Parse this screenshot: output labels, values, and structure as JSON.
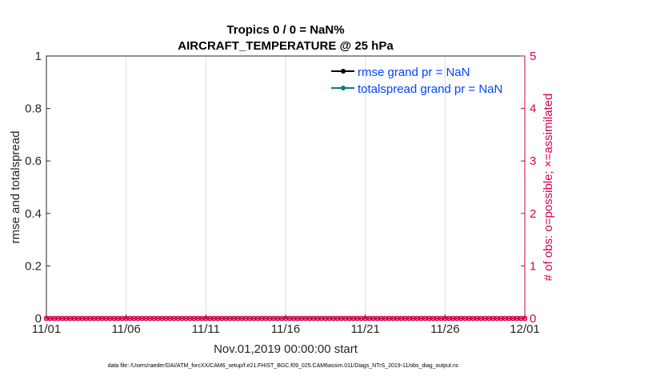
{
  "chart_data": {
    "type": "line",
    "title": [
      "Tropics 0 / 0 = NaN%",
      "AIRCRAFT_TEMPERATURE @ 25 hPa"
    ],
    "xlabel": "Nov.01,2019 00:00:00 start",
    "ylabel_left": "rmse and totalspread",
    "ylabel_right": "# of obs: o=possible; ×=assimilated",
    "x_tick_labels": [
      "11/01",
      "11/06",
      "11/11",
      "11/16",
      "11/21",
      "11/26",
      "12/01"
    ],
    "x_range_days": [
      0,
      30
    ],
    "y_left_ticks": [
      "0",
      "0.2",
      "0.4",
      "0.6",
      "0.8",
      "1"
    ],
    "y_left_range": [
      0,
      1
    ],
    "y_right_ticks": [
      "0",
      "1",
      "2",
      "3",
      "4",
      "5"
    ],
    "y_right_range": [
      0,
      5
    ],
    "grid": "vertical",
    "legend_placement": "top-right",
    "series": [
      {
        "name": "rmse grand pr = NaN",
        "color": "#000000",
        "values": []
      },
      {
        "name": "totalspread grand pr = NaN",
        "color": "#008080",
        "values": []
      },
      {
        "marker": "o",
        "color": "#d6004f",
        "interval_hours": 6,
        "value": 0
      },
      {
        "marker": "x",
        "color": "#d6004f",
        "interval_hours": 6,
        "value": 0
      }
    ],
    "legend_text_color": "#0044ff",
    "right_axis_color": "#d6004f"
  },
  "footer": "data file: /Users/raeder/DAI/ATM_forcXX/CAM6_setup/f.e21.FHIST_BGC.f09_025.CAM6assim.011/Diags_NTrS_2019-11/obs_diag_output.nc"
}
